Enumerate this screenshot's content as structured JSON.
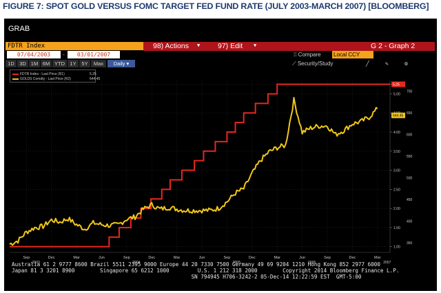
{
  "caption": "FIGURE 7: SPOT GOLD VERSUS FOMC TARGET FED FUND RATE (JULY 2003-MARCH 2007) [BLOOMBERG]",
  "window_title": "GRAB",
  "security": "FDTR Index",
  "menu": {
    "actions": "98) Actions",
    "edit": "97) Edit",
    "graph": "G 2 - Graph 2"
  },
  "dates": {
    "start": "07/04/2003",
    "end": "03/01/2007"
  },
  "compare_label": "Compare",
  "currency": "Local CCY",
  "tabs": [
    "1D",
    "3D",
    "1M",
    "6M",
    "YTD",
    "1Y",
    "5Y",
    "Max"
  ],
  "period": "Daily",
  "security_study": "Security/Study",
  "legend": [
    {
      "label": "FDTR Index - Last Price (R1)",
      "value": "5.25",
      "color": "#e8281e"
    },
    {
      "label": "GOLDS Comdty - Last Price (R2)",
      "value": "644.45",
      "color": "#f2c81a"
    }
  ],
  "footer": {
    "line1": "Australia 61 2 9777 8600 Brazil 5511 2395 9000 Europe 44 20 7330 7500 Germany 49 69 9204 1210 Hong Kong 852 2977 6000",
    "line2": "Japan 81 3 3201 8900        Singapore 65 6212 1000         U.S. 1 212 318 2000        Copyright 2014 Bloomberg Finance L.P.",
    "line3": "                                                         SN 794945 H706-3242-2 05-Dec-14 12:22:59 EST  GMT-5:00"
  },
  "chart_data": {
    "type": "line",
    "x_ticks": [
      {
        "month": "Sep",
        "year": "2003"
      },
      {
        "month": "Dec",
        "year": ""
      },
      {
        "month": "Mar",
        "year": ""
      },
      {
        "month": "Jun",
        "year": ""
      },
      {
        "month": "Sep",
        "year": "2004"
      },
      {
        "month": "Dec",
        "year": ""
      },
      {
        "month": "Mar",
        "year": ""
      },
      {
        "month": "Jun",
        "year": ""
      },
      {
        "month": "Sep",
        "year": "2005"
      },
      {
        "month": "Dec",
        "year": ""
      },
      {
        "month": "Mar",
        "year": ""
      },
      {
        "month": "Jun",
        "year": "2006"
      },
      {
        "month": "Sep",
        "year": ""
      },
      {
        "month": "Dec",
        "year": ""
      },
      {
        "month": "Mar",
        "year": "2007"
      }
    ],
    "x_tick_months": [
      2,
      5,
      8,
      11,
      14,
      17,
      20,
      23,
      26,
      29,
      32,
      35,
      38,
      41,
      44
    ],
    "right_axis_ticks": [
      "5.25",
      "5.00",
      "4.50",
      "4.00",
      "3.50",
      "3.00",
      "2.50",
      "2.00",
      "1.50",
      "1.00"
    ],
    "gold_axis_ticks": [
      "700",
      "650",
      "600",
      "550",
      "500",
      "450",
      "400",
      "350"
    ],
    "last_value_tags": [
      {
        "series": "FDTR Index",
        "value": "5.25",
        "color": "#e8281e"
      },
      {
        "series": "GOLDS Comdty",
        "value": "644.45",
        "color": "#f2c81a"
      }
    ],
    "series": [
      {
        "name": "FDTR Index - Last Price (R1)",
        "color": "#e8281e",
        "step": true,
        "x": [
          0,
          11.9,
          13.1,
          14.5,
          15.7,
          16.9,
          18.2,
          19.2,
          20.6,
          22.1,
          23.2,
          24.6,
          26.0,
          27.0,
          28.0,
          29.4,
          30.9,
          32.0,
          33.2,
          34.6,
          45.5
        ],
        "y": [
          1.0,
          1.25,
          1.5,
          1.75,
          2.0,
          2.25,
          2.5,
          2.75,
          3.0,
          3.25,
          3.5,
          3.75,
          4.0,
          4.25,
          4.5,
          4.75,
          5.0,
          5.25,
          5.25,
          5.25,
          5.25
        ]
      },
      {
        "name": "GOLDS Comdty - Last Price (R2)",
        "color": "#f2c81a",
        "x": [
          0,
          1,
          2,
          3,
          4,
          5,
          6,
          7,
          8,
          9,
          10,
          11,
          12,
          13,
          14,
          15,
          16,
          17,
          18,
          19,
          20,
          21,
          22,
          23,
          24,
          25,
          26,
          27,
          28,
          29,
          30,
          31,
          32,
          33,
          34,
          35,
          36,
          37,
          38,
          39,
          40,
          41,
          42,
          43,
          44
        ],
        "y": [
          347,
          355,
          375,
          385,
          388,
          403,
          398,
          406,
          392,
          382,
          396,
          392,
          390,
          392,
          405,
          410,
          428,
          438,
          428,
          432,
          428,
          425,
          425,
          425,
          425,
          430,
          445,
          465,
          475,
          510,
          540,
          560,
          570,
          575,
          680,
          605,
          615,
          620,
          620,
          600,
          610,
          625,
          630,
          640,
          660
        ]
      }
    ],
    "fdtr_axis_range": [
      0.85,
      5.35
    ],
    "gold_axis_range": [
      328,
      725
    ],
    "x_range_months": [
      0,
      45.5
    ]
  }
}
